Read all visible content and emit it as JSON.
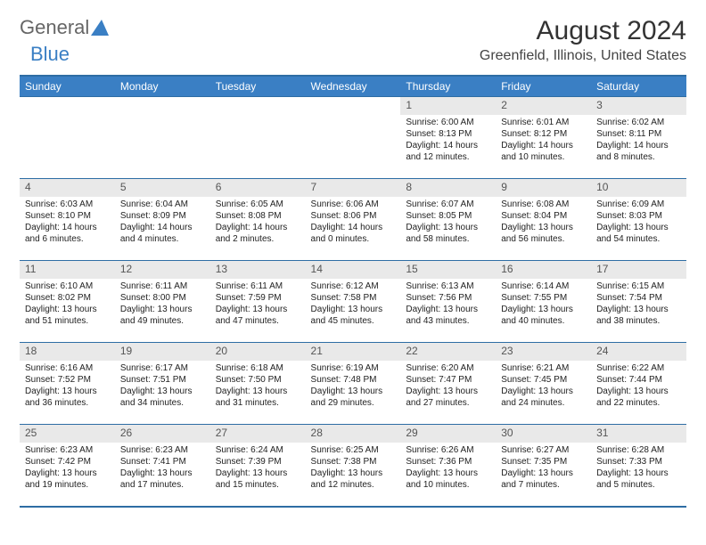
{
  "logo": {
    "part1": "General",
    "part2": "Blue"
  },
  "title": "August 2024",
  "location": "Greenfield, Illinois, United States",
  "colors": {
    "header_bg": "#3a7fc4",
    "header_text": "#ffffff",
    "border": "#2e6da4",
    "daynum_bg": "#e9e9e9",
    "text": "#222222"
  },
  "weekdays": [
    "Sunday",
    "Monday",
    "Tuesday",
    "Wednesday",
    "Thursday",
    "Friday",
    "Saturday"
  ],
  "weeks": [
    [
      {
        "day": "",
        "sunrise": "",
        "sunset": "",
        "daylight": ""
      },
      {
        "day": "",
        "sunrise": "",
        "sunset": "",
        "daylight": ""
      },
      {
        "day": "",
        "sunrise": "",
        "sunset": "",
        "daylight": ""
      },
      {
        "day": "",
        "sunrise": "",
        "sunset": "",
        "daylight": ""
      },
      {
        "day": "1",
        "sunrise": "Sunrise: 6:00 AM",
        "sunset": "Sunset: 8:13 PM",
        "daylight": "Daylight: 14 hours and 12 minutes."
      },
      {
        "day": "2",
        "sunrise": "Sunrise: 6:01 AM",
        "sunset": "Sunset: 8:12 PM",
        "daylight": "Daylight: 14 hours and 10 minutes."
      },
      {
        "day": "3",
        "sunrise": "Sunrise: 6:02 AM",
        "sunset": "Sunset: 8:11 PM",
        "daylight": "Daylight: 14 hours and 8 minutes."
      }
    ],
    [
      {
        "day": "4",
        "sunrise": "Sunrise: 6:03 AM",
        "sunset": "Sunset: 8:10 PM",
        "daylight": "Daylight: 14 hours and 6 minutes."
      },
      {
        "day": "5",
        "sunrise": "Sunrise: 6:04 AM",
        "sunset": "Sunset: 8:09 PM",
        "daylight": "Daylight: 14 hours and 4 minutes."
      },
      {
        "day": "6",
        "sunrise": "Sunrise: 6:05 AM",
        "sunset": "Sunset: 8:08 PM",
        "daylight": "Daylight: 14 hours and 2 minutes."
      },
      {
        "day": "7",
        "sunrise": "Sunrise: 6:06 AM",
        "sunset": "Sunset: 8:06 PM",
        "daylight": "Daylight: 14 hours and 0 minutes."
      },
      {
        "day": "8",
        "sunrise": "Sunrise: 6:07 AM",
        "sunset": "Sunset: 8:05 PM",
        "daylight": "Daylight: 13 hours and 58 minutes."
      },
      {
        "day": "9",
        "sunrise": "Sunrise: 6:08 AM",
        "sunset": "Sunset: 8:04 PM",
        "daylight": "Daylight: 13 hours and 56 minutes."
      },
      {
        "day": "10",
        "sunrise": "Sunrise: 6:09 AM",
        "sunset": "Sunset: 8:03 PM",
        "daylight": "Daylight: 13 hours and 54 minutes."
      }
    ],
    [
      {
        "day": "11",
        "sunrise": "Sunrise: 6:10 AM",
        "sunset": "Sunset: 8:02 PM",
        "daylight": "Daylight: 13 hours and 51 minutes."
      },
      {
        "day": "12",
        "sunrise": "Sunrise: 6:11 AM",
        "sunset": "Sunset: 8:00 PM",
        "daylight": "Daylight: 13 hours and 49 minutes."
      },
      {
        "day": "13",
        "sunrise": "Sunrise: 6:11 AM",
        "sunset": "Sunset: 7:59 PM",
        "daylight": "Daylight: 13 hours and 47 minutes."
      },
      {
        "day": "14",
        "sunrise": "Sunrise: 6:12 AM",
        "sunset": "Sunset: 7:58 PM",
        "daylight": "Daylight: 13 hours and 45 minutes."
      },
      {
        "day": "15",
        "sunrise": "Sunrise: 6:13 AM",
        "sunset": "Sunset: 7:56 PM",
        "daylight": "Daylight: 13 hours and 43 minutes."
      },
      {
        "day": "16",
        "sunrise": "Sunrise: 6:14 AM",
        "sunset": "Sunset: 7:55 PM",
        "daylight": "Daylight: 13 hours and 40 minutes."
      },
      {
        "day": "17",
        "sunrise": "Sunrise: 6:15 AM",
        "sunset": "Sunset: 7:54 PM",
        "daylight": "Daylight: 13 hours and 38 minutes."
      }
    ],
    [
      {
        "day": "18",
        "sunrise": "Sunrise: 6:16 AM",
        "sunset": "Sunset: 7:52 PM",
        "daylight": "Daylight: 13 hours and 36 minutes."
      },
      {
        "day": "19",
        "sunrise": "Sunrise: 6:17 AM",
        "sunset": "Sunset: 7:51 PM",
        "daylight": "Daylight: 13 hours and 34 minutes."
      },
      {
        "day": "20",
        "sunrise": "Sunrise: 6:18 AM",
        "sunset": "Sunset: 7:50 PM",
        "daylight": "Daylight: 13 hours and 31 minutes."
      },
      {
        "day": "21",
        "sunrise": "Sunrise: 6:19 AM",
        "sunset": "Sunset: 7:48 PM",
        "daylight": "Daylight: 13 hours and 29 minutes."
      },
      {
        "day": "22",
        "sunrise": "Sunrise: 6:20 AM",
        "sunset": "Sunset: 7:47 PM",
        "daylight": "Daylight: 13 hours and 27 minutes."
      },
      {
        "day": "23",
        "sunrise": "Sunrise: 6:21 AM",
        "sunset": "Sunset: 7:45 PM",
        "daylight": "Daylight: 13 hours and 24 minutes."
      },
      {
        "day": "24",
        "sunrise": "Sunrise: 6:22 AM",
        "sunset": "Sunset: 7:44 PM",
        "daylight": "Daylight: 13 hours and 22 minutes."
      }
    ],
    [
      {
        "day": "25",
        "sunrise": "Sunrise: 6:23 AM",
        "sunset": "Sunset: 7:42 PM",
        "daylight": "Daylight: 13 hours and 19 minutes."
      },
      {
        "day": "26",
        "sunrise": "Sunrise: 6:23 AM",
        "sunset": "Sunset: 7:41 PM",
        "daylight": "Daylight: 13 hours and 17 minutes."
      },
      {
        "day": "27",
        "sunrise": "Sunrise: 6:24 AM",
        "sunset": "Sunset: 7:39 PM",
        "daylight": "Daylight: 13 hours and 15 minutes."
      },
      {
        "day": "28",
        "sunrise": "Sunrise: 6:25 AM",
        "sunset": "Sunset: 7:38 PM",
        "daylight": "Daylight: 13 hours and 12 minutes."
      },
      {
        "day": "29",
        "sunrise": "Sunrise: 6:26 AM",
        "sunset": "Sunset: 7:36 PM",
        "daylight": "Daylight: 13 hours and 10 minutes."
      },
      {
        "day": "30",
        "sunrise": "Sunrise: 6:27 AM",
        "sunset": "Sunset: 7:35 PM",
        "daylight": "Daylight: 13 hours and 7 minutes."
      },
      {
        "day": "31",
        "sunrise": "Sunrise: 6:28 AM",
        "sunset": "Sunset: 7:33 PM",
        "daylight": "Daylight: 13 hours and 5 minutes."
      }
    ]
  ]
}
